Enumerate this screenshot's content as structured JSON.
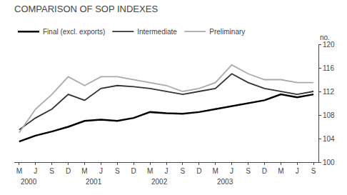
{
  "chart_data": {
    "type": "line",
    "title": "COMPARISON OF SOP INDEXES",
    "y_label": "no.",
    "categories": [
      "M",
      "J",
      "S",
      "D",
      "M",
      "J",
      "S",
      "D",
      "M",
      "J",
      "S",
      "D",
      "M",
      "J",
      "S",
      "D",
      "M",
      "J",
      "S"
    ],
    "annotations": [
      {
        "text": "2000",
        "x": 0
      },
      {
        "text": "2001",
        "x": 4
      },
      {
        "text": "2002",
        "x": 8
      },
      {
        "text": "2003",
        "x": 12
      }
    ],
    "series": [
      {
        "name": "Final (excl. exports)",
        "color": "#000000",
        "values": [
          103.5,
          104.5,
          105.2,
          106.0,
          107.0,
          107.2,
          107.0,
          107.5,
          108.5,
          108.3,
          108.2,
          108.5,
          109.0,
          109.5,
          110.0,
          110.5,
          111.5,
          111.0,
          111.5
        ]
      },
      {
        "name": "Intermediate",
        "color": "#333333",
        "values": [
          105.5,
          107.5,
          109.0,
          111.5,
          110.5,
          112.5,
          113.0,
          112.8,
          112.5,
          112.0,
          111.5,
          112.0,
          112.5,
          115.0,
          113.5,
          112.5,
          112.0,
          111.5,
          112.0
        ]
      },
      {
        "name": "Preliminary",
        "color": "#aaaaaa",
        "values": [
          105.0,
          109.0,
          111.5,
          114.5,
          113.0,
          114.5,
          114.5,
          114.0,
          113.5,
          113.0,
          112.0,
          112.5,
          113.5,
          116.5,
          115.0,
          114.0,
          114.0,
          113.5,
          113.5
        ]
      }
    ],
    "ylim": [
      100,
      120
    ],
    "yticks": [
      100,
      104,
      108,
      112,
      116,
      120
    ],
    "grid": false,
    "legend": "upper left"
  }
}
